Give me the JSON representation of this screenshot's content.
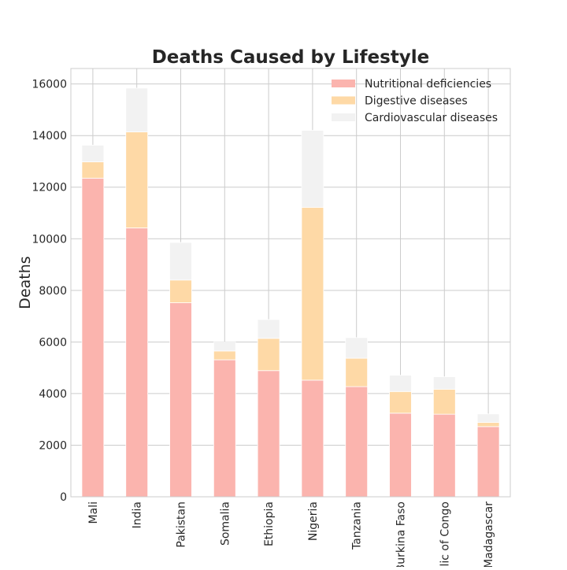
{
  "chart_data": {
    "type": "bar",
    "stacked": true,
    "title": "Deaths Caused by Lifestyle",
    "xlabel": "",
    "ylabel": "Deaths",
    "ylim": [
      0,
      16600
    ],
    "yticks": [
      0,
      2000,
      4000,
      6000,
      8000,
      10000,
      12000,
      14000,
      16000
    ],
    "grid": true,
    "legend_position": "top-right",
    "categories": [
      "Mali",
      "India",
      "Pakistan",
      "Somalia",
      "Ethiopia",
      "Nigeria",
      "Tanzania",
      "Burkina Faso",
      "blic of Congo",
      "Madagascar"
    ],
    "series": [
      {
        "name": "Nutritional deficiencies",
        "color": "#fbb4ae",
        "values": [
          12350,
          10420,
          7520,
          5310,
          4890,
          4520,
          4270,
          3240,
          3200,
          2720
        ]
      },
      {
        "name": "Digestive diseases",
        "color": "#fed9a6",
        "values": [
          630,
          3720,
          880,
          340,
          1250,
          6700,
          1100,
          840,
          970,
          160
        ]
      },
      {
        "name": "Cardiovascular diseases",
        "color": "#f2f2f2",
        "values": [
          650,
          1700,
          1460,
          340,
          730,
          2980,
          800,
          630,
          480,
          330
        ]
      }
    ]
  }
}
